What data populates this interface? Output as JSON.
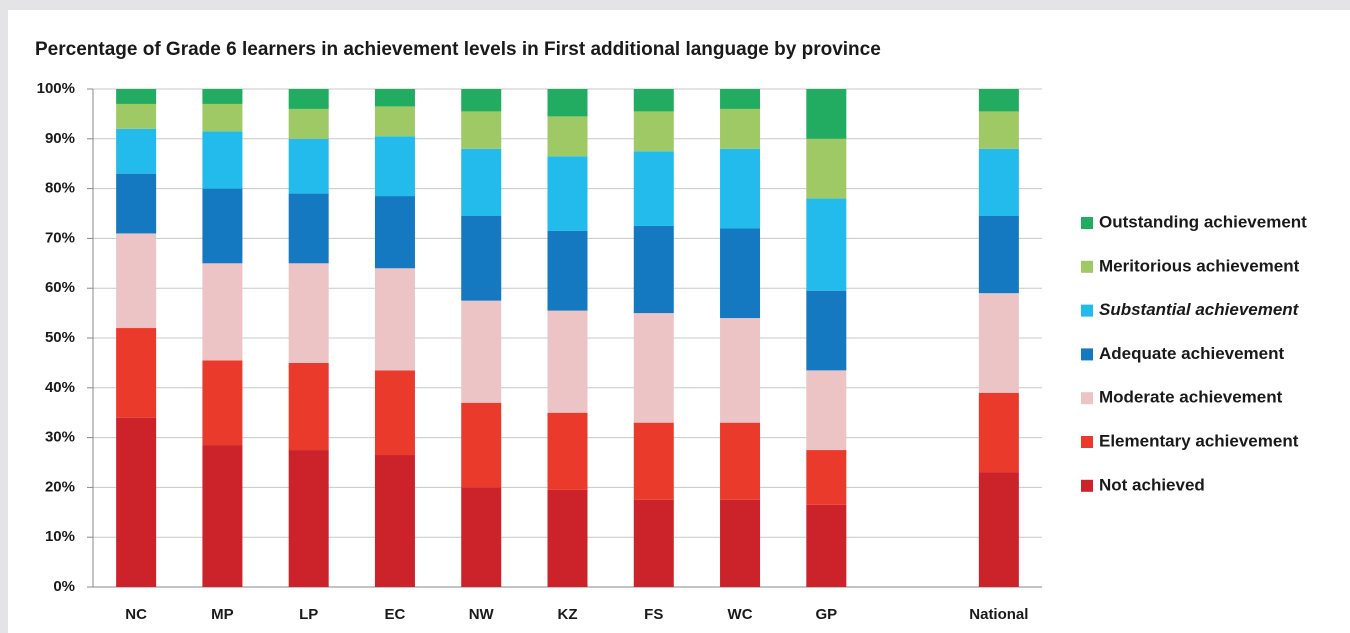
{
  "chart_data": {
    "type": "stacked_bar",
    "title": "Percentage of Grade 6 learners in achievement levels in First additional language by province",
    "categories": [
      "NC",
      "MP",
      "LP",
      "EC",
      "NW",
      "KZ",
      "FS",
      "WC",
      "GP",
      null,
      "National"
    ],
    "series": [
      {
        "name": "Not achieved",
        "color": "#cc2229",
        "values": [
          34,
          28.5,
          27.5,
          26.5,
          20,
          19.5,
          17.5,
          17.5,
          16.5,
          null,
          23
        ]
      },
      {
        "name": "Elementary achievement",
        "color": "#e93a2b",
        "values": [
          18,
          17,
          17.5,
          17,
          17,
          15.5,
          15.5,
          15.5,
          11,
          null,
          16
        ]
      },
      {
        "name": "Moderate achievement",
        "color": "#ecc4c5",
        "values": [
          19,
          19.5,
          20,
          20.5,
          20.5,
          20.5,
          22,
          21,
          16,
          null,
          20
        ]
      },
      {
        "name": "Adequate achievement",
        "color": "#1479c0",
        "values": [
          12,
          15,
          14,
          14.5,
          17,
          16,
          17.5,
          18,
          16,
          null,
          15.5
        ]
      },
      {
        "name": "Substantial achievement",
        "color": "#22bbeb",
        "values": [
          9,
          11.5,
          11,
          12,
          13.5,
          15,
          15,
          16,
          18.5,
          null,
          13.5
        ]
      },
      {
        "name": "Meritorious achievement",
        "color": "#9fc964",
        "values": [
          5,
          5.5,
          6,
          6,
          7.5,
          8,
          8,
          8,
          12,
          null,
          7.5
        ]
      },
      {
        "name": "Outstanding achievement",
        "color": "#22ac62",
        "values": [
          3,
          3,
          4,
          3.5,
          4.5,
          5.5,
          4.5,
          4,
          10,
          null,
          4.5
        ]
      }
    ],
    "ylim": [
      0,
      100
    ],
    "yticks": [
      {
        "value": 0,
        "label": "0%"
      },
      {
        "value": 10,
        "label": "10%"
      },
      {
        "value": 20,
        "label": "20%"
      },
      {
        "value": 30,
        "label": "30%"
      },
      {
        "value": 40,
        "label": "40%"
      },
      {
        "value": 50,
        "label": "50%"
      },
      {
        "value": 60,
        "label": "60%"
      },
      {
        "value": 70,
        "label": "70%"
      },
      {
        "value": 80,
        "label": "80%"
      },
      {
        "value": 90,
        "label": "90%"
      },
      {
        "value": 100,
        "label": "100%"
      }
    ],
    "grid": true,
    "legend": "right"
  }
}
